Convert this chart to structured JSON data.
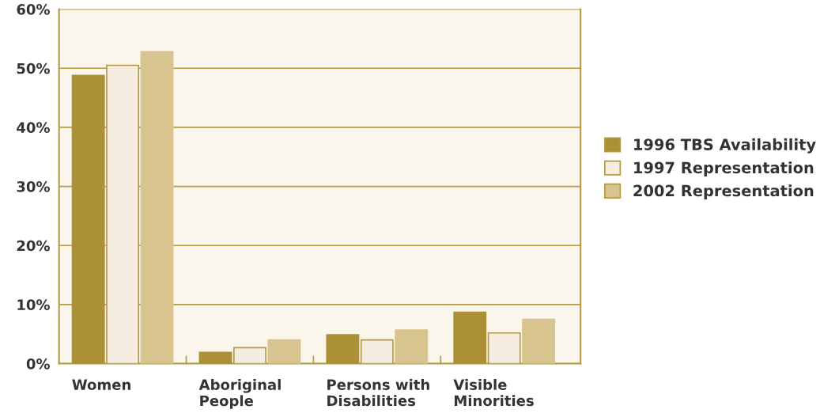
{
  "chart_data": {
    "type": "bar",
    "categories": [
      "Women",
      "Aboriginal\nPeople",
      "Persons with\nDisabilities",
      "Visible\nMinorities"
    ],
    "series": [
      {
        "name": "1996 TBS Availability",
        "color": "#ab9038",
        "values": [
          48.8,
          1.9,
          4.9,
          8.7
        ]
      },
      {
        "name": "1997 Representation",
        "color": "#f5ede0",
        "values": [
          50.5,
          2.7,
          4.0,
          5.2
        ]
      },
      {
        "name": "2002 Representation",
        "color": "#d8c48f",
        "values": [
          52.8,
          4.0,
          5.7,
          7.5
        ]
      }
    ],
    "ylim": [
      0,
      60
    ],
    "yticks": [
      {
        "value": 0,
        "label": "0%"
      },
      {
        "value": 10,
        "label": "10%"
      },
      {
        "value": 20,
        "label": "20%"
      },
      {
        "value": 30,
        "label": "30%"
      },
      {
        "value": 40,
        "label": "40%"
      },
      {
        "value": 50,
        "label": "50%"
      },
      {
        "value": 60,
        "label": "60%"
      }
    ],
    "grid": "y",
    "legend": "right"
  }
}
